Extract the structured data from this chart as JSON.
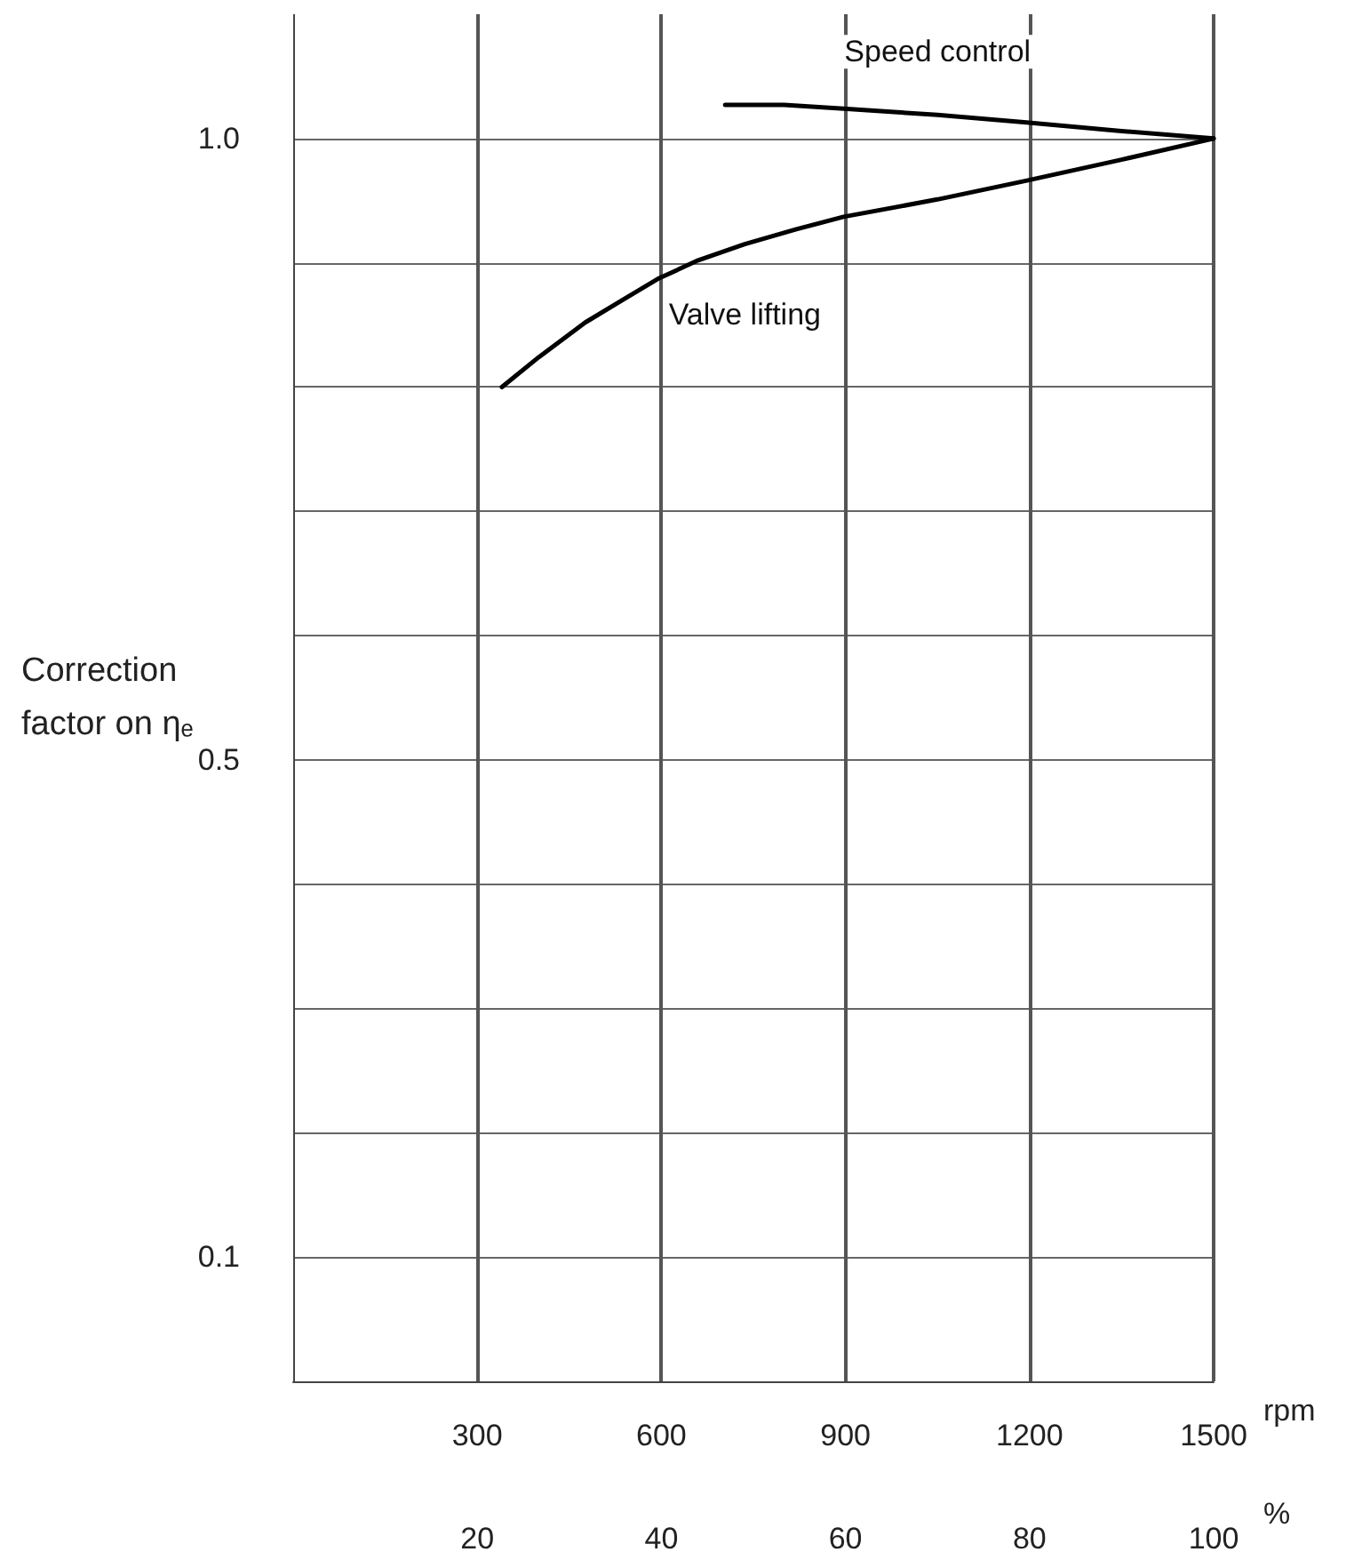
{
  "chart_data": {
    "type": "line",
    "ylabel": "Correction factor on ηₑ",
    "xlabel": "rpm",
    "x2label": "%",
    "xlim": [
      0,
      1500
    ],
    "xticks": [
      300,
      600,
      900,
      1200,
      1500
    ],
    "x2lim": [
      0,
      100
    ],
    "x2ticks": [
      20,
      40,
      60,
      80,
      100
    ],
    "ylim": [
      0,
      1.1
    ],
    "yticks": [
      {
        "value": 0.1,
        "label": "0.1"
      },
      {
        "value": 0.2,
        "label": null
      },
      {
        "value": 0.3,
        "label": null
      },
      {
        "value": 0.4,
        "label": null
      },
      {
        "value": 0.5,
        "label": "0.5"
      },
      {
        "value": 0.6,
        "label": null
      },
      {
        "value": 0.7,
        "label": null
      },
      {
        "value": 0.8,
        "label": null
      },
      {
        "value": 0.9,
        "label": null
      },
      {
        "value": 1.0,
        "label": "1.0"
      }
    ],
    "grid": true,
    "marker": "none",
    "line_style": "solid",
    "legend": false,
    "series": [
      {
        "name": "Speed control",
        "color": "#000000",
        "x": [
          704,
          800,
          897,
          1050,
          1195,
          1350,
          1500
        ],
        "values": [
          1.027,
          1.027,
          1.024,
          1.019,
          1.013,
          1.006,
          1.0
        ]
      },
      {
        "name": "Valve lifting",
        "color": "#000000",
        "x": [
          340,
          400,
          476,
          540,
          594,
          660,
          736,
          820,
          897,
          1050,
          1194,
          1350,
          1500
        ],
        "values": [
          0.8,
          0.824,
          0.852,
          0.871,
          0.887,
          0.902,
          0.915,
          0.927,
          0.937,
          0.951,
          0.966,
          0.983,
          1.0
        ]
      }
    ]
  }
}
